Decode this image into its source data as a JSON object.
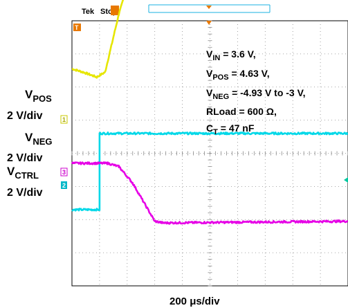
{
  "header": {
    "brand": "Tek",
    "status": "Stop"
  },
  "channel_labels": [
    {
      "main": "V",
      "sub": "POS",
      "scale": "2 V/div",
      "marker": "1",
      "color": "#e6e600"
    },
    {
      "main": "V",
      "sub": "NEG",
      "scale": "2 V/div",
      "marker": "3",
      "color": "#cc00cc"
    },
    {
      "main": "V",
      "sub": "CTRL",
      "scale": "2 V/div",
      "marker": "2",
      "color": "#00b8c8"
    }
  ],
  "trigger_marker": "T",
  "annotations": [
    {
      "pre": "V",
      "sub": "IN",
      "post": " = 3.6 V,"
    },
    {
      "pre": "V",
      "sub": "POS",
      "post": " = 4.63 V,"
    },
    {
      "pre": "V",
      "sub": "NEG",
      "post": " = -4.93 V to -3 V,"
    },
    {
      "pre": "RLoad = 600 ",
      "sub": "",
      "post": "Ω,"
    },
    {
      "pre": "C",
      "sub": "T",
      "post": " = 47 nF"
    }
  ],
  "timebase_label": "200 μs/div",
  "colors": {
    "ch1_yellow": "#e6e600",
    "ch2_cyan": "#00d8e8",
    "ch3_magenta": "#e600e6",
    "trigger_orange": "#e87800",
    "grid": "#888888"
  },
  "chart_data": {
    "type": "line",
    "title": "",
    "xlabel": "200 μs/div",
    "ylabel": "",
    "x_divisions": 10,
    "y_divisions": 8,
    "x_units": "div",
    "y_units": "div",
    "grid": true,
    "series": [
      {
        "name": "VPOS",
        "color": "#e6e600",
        "points": [
          [
            0,
            2.55
          ],
          [
            0.4,
            2.45
          ],
          [
            0.9,
            2.3
          ],
          [
            1.2,
            2.45
          ],
          [
            1.7,
            4.2
          ],
          [
            1.9,
            4.75
          ],
          [
            2.0,
            4.75
          ],
          [
            4.0,
            4.75
          ],
          [
            10,
            4.75
          ]
        ]
      },
      {
        "name": "VNEG",
        "color": "#00d8e8",
        "points": [
          [
            0,
            -1.7
          ],
          [
            1.0,
            -1.7
          ],
          [
            1.0,
            0.6
          ],
          [
            10,
            0.6
          ]
        ]
      },
      {
        "name": "VCTRL",
        "color": "#e600e6",
        "points": [
          [
            0,
            -0.3
          ],
          [
            1.3,
            -0.3
          ],
          [
            1.7,
            -0.4
          ],
          [
            2.2,
            -0.9
          ],
          [
            3.0,
            -2.05
          ],
          [
            3.3,
            -2.1
          ],
          [
            10,
            -2.05
          ]
        ]
      }
    ]
  }
}
